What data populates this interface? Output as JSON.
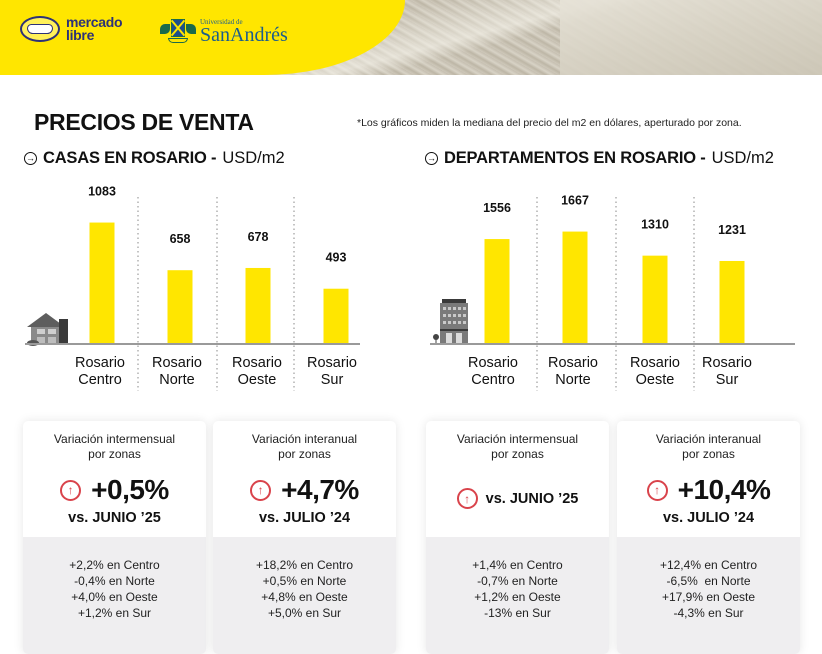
{
  "header": {
    "logo_ml_line1": "mercado",
    "logo_ml_line2": "libre",
    "logo_sa_small": "Universidad de",
    "logo_sa_big": "SanAndrés",
    "brand_color": "#ffe600"
  },
  "page_title": "PRECIOS DE VENTA",
  "footnote": "*Los gráficos miden  la mediana del precio del m2 en dólares, aperturado por zona.",
  "sections": {
    "casas": {
      "title_bold": "CASAS EN ROSARIO -",
      "title_unit": "USD/m2",
      "icon": "house-icon"
    },
    "deptos": {
      "title_bold": "DEPARTAMENTOS EN ROSARIO -",
      "title_unit": "USD/m2",
      "icon": "building-icon"
    }
  },
  "chart_data": [
    {
      "type": "bar",
      "title": "CASAS EN ROSARIO - USD/m2",
      "xlabel": "",
      "ylabel": "USD/m2",
      "categories": [
        [
          "Rosario",
          "Centro"
        ],
        [
          "Rosario",
          "Norte"
        ],
        [
          "Rosario",
          "Oeste"
        ],
        [
          "Rosario",
          "Sur"
        ]
      ],
      "values": [
        1083,
        658,
        678,
        493
      ],
      "ylim": [
        0,
        1400
      ],
      "bar_color": "#ffe600",
      "grid": false,
      "separators": "dotted-vertical"
    },
    {
      "type": "bar",
      "title": "DEPARTAMENTOS EN ROSARIO - USD/m2",
      "xlabel": "",
      "ylabel": "USD/m2",
      "categories": [
        [
          "Rosario",
          "Centro"
        ],
        [
          "Rosario",
          "Norte"
        ],
        [
          "Rosario",
          "Oeste"
        ],
        [
          "Rosario",
          "Sur"
        ]
      ],
      "values": [
        1556,
        1667,
        1310,
        1231
      ],
      "ylim": [
        0,
        2150
      ],
      "bar_color": "#ffe600",
      "grid": false,
      "separators": "dotted-vertical"
    }
  ],
  "cards": [
    {
      "label_line1": "Variación intermensual",
      "label_line2": "por zonas",
      "value": "+0,5%",
      "vs": "vs. JUNIO ’25",
      "direction_icon": "arrow-up-circle-icon",
      "zones": [
        "+2,2% en Centro",
        "-0,4% en Norte",
        "+4,0% en Oeste",
        "+1,2% en Sur"
      ]
    },
    {
      "label_line1": "Variación interanual",
      "label_line2": "por zonas",
      "value": "+4,7%",
      "vs": "vs. JULIO ’24",
      "direction_icon": "arrow-up-circle-icon",
      "zones": [
        "+18,2% en Centro",
        "+0,5% en Norte",
        "+4,8% en Oeste",
        "+5,0% en Sur"
      ]
    },
    {
      "label_line1": "Variación intermensual",
      "label_line2": "por zonas",
      "value": "",
      "vs": "vs. JUNIO ’25",
      "direction_icon": "arrow-up-circle-icon",
      "zones": [
        "+1,4% en Centro",
        "-0,7% en Norte",
        "+1,2% en Oeste",
        "-13% en Sur"
      ]
    },
    {
      "label_line1": "Variación interanual",
      "label_line2": "por zonas",
      "value": "+10,4%",
      "vs": "vs. JULIO ’24",
      "direction_icon": "arrow-up-circle-icon",
      "zones": [
        "+12,4% en Centro",
        "-6,5%  en Norte",
        "+17,9% en Oeste",
        "-4,3% en Sur"
      ]
    }
  ],
  "icons": {
    "arrow_right": "→",
    "arrow_up": "↑"
  }
}
